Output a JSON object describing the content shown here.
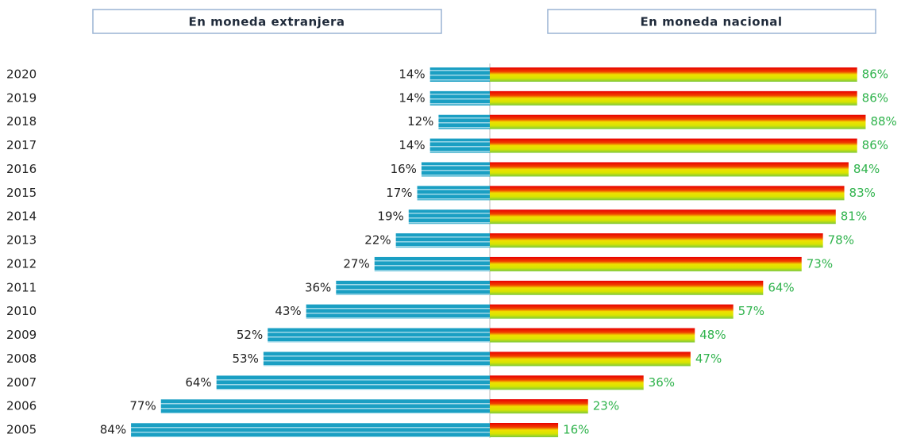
{
  "chart_data": {
    "type": "bar",
    "categories": [
      "2020",
      "2019",
      "2018",
      "2017",
      "2016",
      "2015",
      "2014",
      "2013",
      "2012",
      "2011",
      "2010",
      "2009",
      "2008",
      "2007",
      "2006",
      "2005"
    ],
    "series": [
      {
        "name": "En moneda extranjera",
        "color": "#1a9fc3",
        "values": [
          14,
          14,
          12,
          14,
          16,
          17,
          19,
          22,
          27,
          36,
          43,
          52,
          53,
          64,
          77,
          84
        ],
        "value_labels": [
          "14%",
          "14%",
          "12%",
          "14%",
          "16%",
          "17%",
          "19%",
          "22%",
          "27%",
          "36%",
          "43%",
          "52%",
          "53%",
          "64%",
          "77%",
          "84%"
        ]
      },
      {
        "name": "En moneda nacional",
        "color": "#e8e000",
        "values": [
          86,
          86,
          88,
          86,
          84,
          83,
          81,
          78,
          73,
          64,
          57,
          48,
          47,
          36,
          23,
          16
        ],
        "value_labels": [
          "86%",
          "86%",
          "88%",
          "86%",
          "84%",
          "83%",
          "81%",
          "78%",
          "73%",
          "64%",
          "57%",
          "48%",
          "47%",
          "36%",
          "23%",
          "16%"
        ]
      }
    ]
  }
}
